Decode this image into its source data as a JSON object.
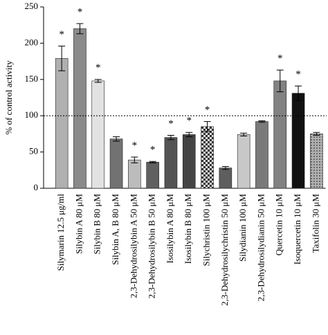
{
  "chart_data": {
    "type": "bar",
    "y_label": "% of control activity",
    "categories": [
      "Silymarin 12.5 μg/ml",
      "Silybin A 80 μM",
      "Silybin B 80 μM",
      "Silybin A, B 80 μM",
      "2,3-Dehydrosilybin A 50 μM",
      "2,3-Dehydrosilybin B 50 μM",
      "Isosilybin A 80 μM",
      "Isosilybin B 80 μM",
      "Silychristin 100 μM",
      "2,3-Dehydrosilychristin 50 μM",
      "Silydianin 100 μM",
      "2,3-Dehydrosilydianin 50 μM",
      "Quercetin 10 μM",
      "Isoquercetin 10 μM",
      "Taxifolin 30 μM"
    ],
    "values": [
      179,
      220,
      148,
      68,
      39,
      36,
      70,
      74,
      85,
      28,
      74,
      92,
      148,
      131,
      75
    ],
    "errors": [
      17,
      7,
      2,
      3,
      4,
      1,
      3,
      3,
      7,
      2,
      2,
      1,
      15,
      10,
      2
    ],
    "significance": [
      "*",
      "*",
      "*",
      null,
      "*",
      "*",
      "*",
      "*",
      "*",
      null,
      null,
      null,
      "*",
      "*",
      null
    ],
    "colors": [
      "#b0b0b0",
      "#8a8a8a",
      "#e2e2e2",
      "#727272",
      "#bcbcbc",
      "#606060",
      "#545454",
      "#444444",
      "#505050",
      "#5e5e5e",
      "#c8c8c8",
      "#7a7a7a",
      "#828282",
      "#111111",
      "#9a9a9a"
    ],
    "patterns": [
      null,
      null,
      null,
      null,
      null,
      null,
      null,
      null,
      "checker",
      null,
      null,
      null,
      null,
      null,
      "dots"
    ],
    "reference_line": 100,
    "ylim": [
      0,
      250
    ],
    "yticks": [
      0,
      50,
      100,
      150,
      200,
      250
    ]
  }
}
